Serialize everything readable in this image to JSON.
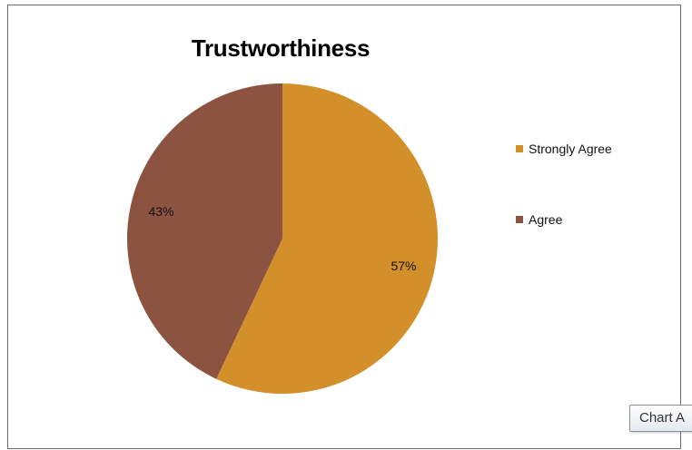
{
  "chart_data": {
    "type": "pie",
    "title": "Trustworthiness",
    "slices": [
      {
        "label": "Strongly Agree",
        "value": 57,
        "data_label": "57%",
        "color": "#D38F2A"
      },
      {
        "label": "Agree",
        "value": 43,
        "data_label": "43%",
        "color": "#8C5340"
      }
    ],
    "legend_position": "right"
  },
  "tooltip": {
    "text": "Chart A"
  }
}
